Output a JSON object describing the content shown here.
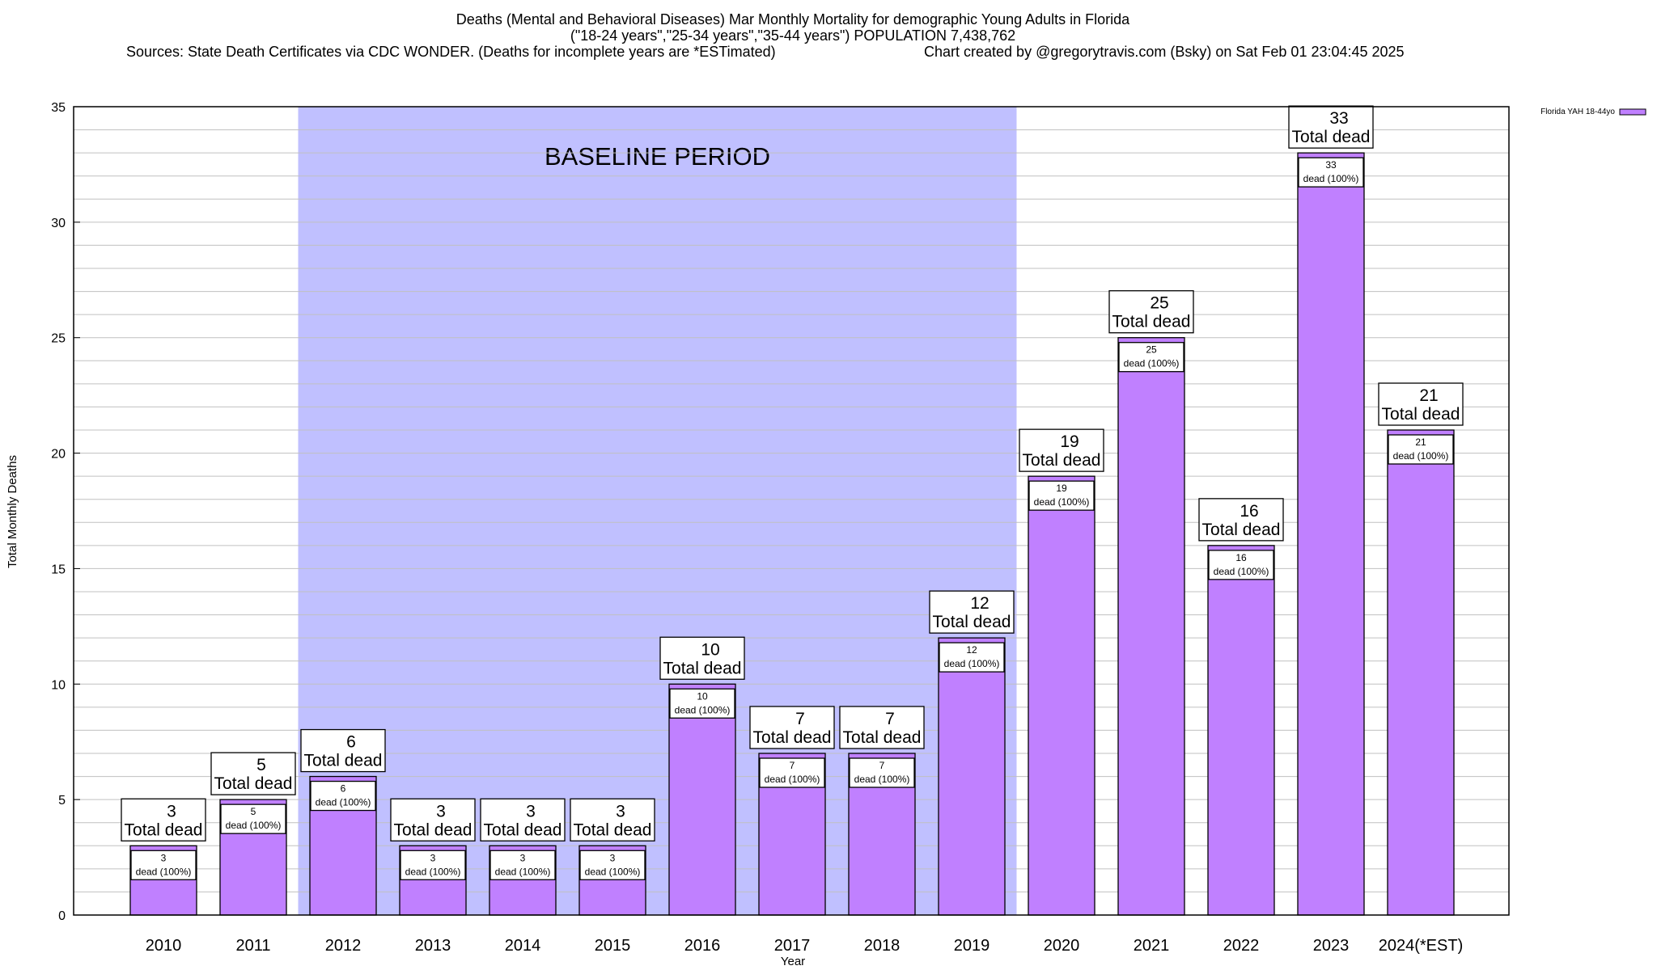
{
  "chart_data": {
    "type": "bar",
    "title_lines": [
      "Deaths (Mental and Behavioral Diseases) Mar Monthly Mortality for demographic Young Adults in Florida",
      "(\"18-24 years\",\"25-34 years\",\"35-44 years\") POPULATION 7,438,762"
    ],
    "sources": "Sources: State Death Certificates via CDC WONDER. (Deaths for incomplete years are *ESTimated)",
    "credit": "Chart created by @gregorytravis.com (Bsky) on Sat Feb 01 23:04:45 2025",
    "xlabel": "Year",
    "ylabel": "Total Monthly Deaths",
    "ylim": [
      0,
      35
    ],
    "yticks": [
      0,
      5,
      10,
      15,
      20,
      25,
      30,
      35
    ],
    "grid": true,
    "legend": {
      "position": "top-right",
      "label": "Florida YAH 18-44yo"
    },
    "baseline": {
      "label": "BASELINE PERIOD",
      "from": "2012",
      "to": "2019"
    },
    "categories": [
      "2010",
      "2011",
      "2012",
      "2013",
      "2014",
      "2015",
      "2016",
      "2017",
      "2018",
      "2019",
      "2020",
      "2021",
      "2022",
      "2023",
      "2024(*EST)"
    ],
    "series": [
      {
        "name": "Florida YAH 18-44yo",
        "values": [
          3,
          5,
          6,
          3,
          3,
          3,
          10,
          7,
          7,
          12,
          19,
          25,
          16,
          33,
          21
        ]
      }
    ],
    "top_label_suffix": "Total dead",
    "inner_label_suffix": "dead (100%)",
    "colors": {
      "bar": "#c080ff",
      "baseline": "#c0c0ff",
      "grid": "#c0c0c0"
    }
  }
}
